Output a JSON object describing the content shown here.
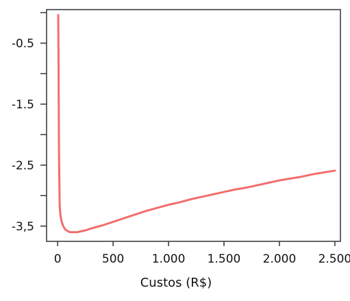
{
  "chart_data": {
    "type": "line",
    "title": "",
    "xlabel": "Custos (R$)",
    "ylabel": "",
    "xlim": [
      -100,
      2550
    ],
    "ylim": [
      -3.75,
      0.05
    ],
    "x_ticks": [
      0,
      500,
      1000,
      1500,
      2000,
      2500
    ],
    "x_tick_labels": [
      "0",
      "500",
      "1.000",
      "1.500",
      "2.000",
      "2.500"
    ],
    "y_ticks": [
      -0.5,
      -1.5,
      -2.5,
      -3.5
    ],
    "y_tick_labels": [
      "-0.5",
      "-1.5",
      "-2.5",
      "-3,5"
    ],
    "y_minor_ticks": [
      0,
      -1,
      -2,
      -3
    ],
    "grid": false,
    "legend": "none",
    "line_color": "#f26d6d",
    "series": [
      {
        "x": [
          5,
          8,
          12,
          18,
          25,
          35,
          50,
          70,
          90,
          110,
          130,
          150,
          175,
          200,
          250,
          300,
          400,
          500,
          600,
          700,
          800,
          900,
          1000,
          1100,
          1200,
          1300,
          1400,
          1500,
          1600,
          1700,
          1800,
          1900,
          2000,
          2100,
          2200,
          2300,
          2400,
          2500
        ],
        "values": [
          -0.04,
          -0.8,
          -2.3,
          -3.15,
          -3.32,
          -3.42,
          -3.5,
          -3.56,
          -3.58,
          -3.6,
          -3.6,
          -3.6,
          -3.6,
          -3.59,
          -3.57,
          -3.54,
          -3.49,
          -3.43,
          -3.37,
          -3.31,
          -3.25,
          -3.2,
          -3.15,
          -3.11,
          -3.06,
          -3.02,
          -2.98,
          -2.94,
          -2.9,
          -2.87,
          -2.83,
          -2.79,
          -2.75,
          -2.72,
          -2.69,
          -2.65,
          -2.62,
          -2.59
        ]
      }
    ]
  }
}
